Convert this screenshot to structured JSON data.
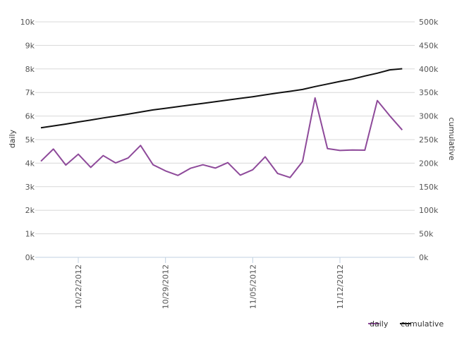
{
  "chart_data": {
    "type": "line",
    "x": [
      "10/19/2012",
      "10/20/2012",
      "10/21/2012",
      "10/22/2012",
      "10/23/2012",
      "10/24/2012",
      "10/25/2012",
      "10/26/2012",
      "10/27/2012",
      "10/28/2012",
      "10/29/2012",
      "10/30/2012",
      "10/31/2012",
      "11/01/2012",
      "11/02/2012",
      "11/03/2012",
      "11/04/2012",
      "11/05/2012",
      "11/06/2012",
      "11/07/2012",
      "11/08/2012",
      "11/09/2012",
      "11/10/2012",
      "11/11/2012",
      "11/12/2012",
      "11/13/2012",
      "11/14/2012",
      "11/15/2012",
      "11/16/2012",
      "11/17/2012",
      "11/18/2012"
    ],
    "x_tick_labels": [
      "10/22/2012",
      "10/29/2012",
      "11/05/2012",
      "11/12/2012"
    ],
    "x_tick_indices": [
      3,
      10,
      17,
      24
    ],
    "y_left": {
      "label": "daily",
      "min": 0,
      "max": 10000,
      "ticks": [
        "0k",
        "1k",
        "2k",
        "3k",
        "4k",
        "5k",
        "6k",
        "7k",
        "8k",
        "9k",
        "10k"
      ]
    },
    "y_right": {
      "label": "cumulative",
      "min": 0,
      "max": 500000,
      "ticks": [
        "0k",
        "50k",
        "100k",
        "150k",
        "200k",
        "250k",
        "300k",
        "350k",
        "400k",
        "450k",
        "500k"
      ]
    },
    "series": [
      {
        "name": "daily",
        "axis": "left",
        "color": "#8e4a9a",
        "values": [
          4080,
          4600,
          3920,
          4380,
          3820,
          4320,
          4010,
          4220,
          4750,
          3930,
          3670,
          3480,
          3780,
          3930,
          3790,
          4020,
          3490,
          3720,
          4270,
          3560,
          3390,
          4070,
          6770,
          4620,
          4540,
          4560,
          4550,
          6660,
          6010,
          5410,
          null
        ]
      },
      {
        "name": "cumulative",
        "axis": "right",
        "color": "#111111",
        "values": [
          275000,
          279000,
          283000,
          287500,
          291500,
          296000,
          300000,
          304000,
          308500,
          313000,
          316500,
          320000,
          323500,
          327000,
          330500,
          334000,
          337500,
          341000,
          345000,
          349000,
          352500,
          356500,
          362500,
          368000,
          373500,
          378500,
          385000,
          391000,
          398000,
          400500,
          null
        ]
      }
    ],
    "legend": {
      "placement": "bottom-right",
      "items": [
        "daily",
        "cumulative"
      ]
    },
    "grid": true
  }
}
